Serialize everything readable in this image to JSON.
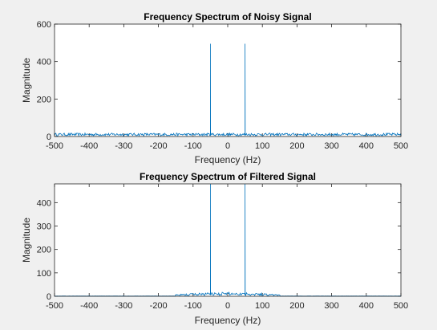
{
  "colors": {
    "figure_bg": "#f0f0f0",
    "axes_bg": "#ffffff",
    "axis_line": "#262626",
    "series": "#0072bd"
  },
  "chart_data": [
    {
      "type": "line",
      "title": "Frequency Spectrum of Noisy Signal",
      "xlabel": "Frequency (Hz)",
      "ylabel": "Magnitude",
      "xlim": [
        -500,
        500
      ],
      "ylim": [
        0,
        600
      ],
      "xticks": [
        -500,
        -400,
        -300,
        -200,
        -100,
        0,
        100,
        200,
        300,
        400,
        500
      ],
      "yticks": [
        0,
        200,
        400,
        600
      ],
      "grid": false,
      "legend": "none",
      "series": [
        {
          "noise_floor": 12,
          "noise_band": [
            -500,
            500
          ],
          "peaks": [
            {
              "x": -50,
              "y": 495
            },
            {
              "x": 50,
              "y": 495
            }
          ]
        }
      ]
    },
    {
      "type": "line",
      "title": "Frequency Spectrum of Filtered Signal",
      "xlabel": "Frequency (Hz)",
      "ylabel": "Magnitude",
      "xlim": [
        -500,
        500
      ],
      "ylim": [
        0,
        480
      ],
      "xticks": [
        -500,
        -400,
        -300,
        -200,
        -100,
        0,
        100,
        200,
        300,
        400,
        500
      ],
      "yticks": [
        0,
        100,
        200,
        300,
        400
      ],
      "grid": false,
      "legend": "none",
      "series": [
        {
          "noise_floor": 12,
          "noise_band": [
            -150,
            150
          ],
          "peaks": [
            {
              "x": -50,
              "y": 495
            },
            {
              "x": 50,
              "y": 495
            }
          ]
        }
      ]
    }
  ]
}
